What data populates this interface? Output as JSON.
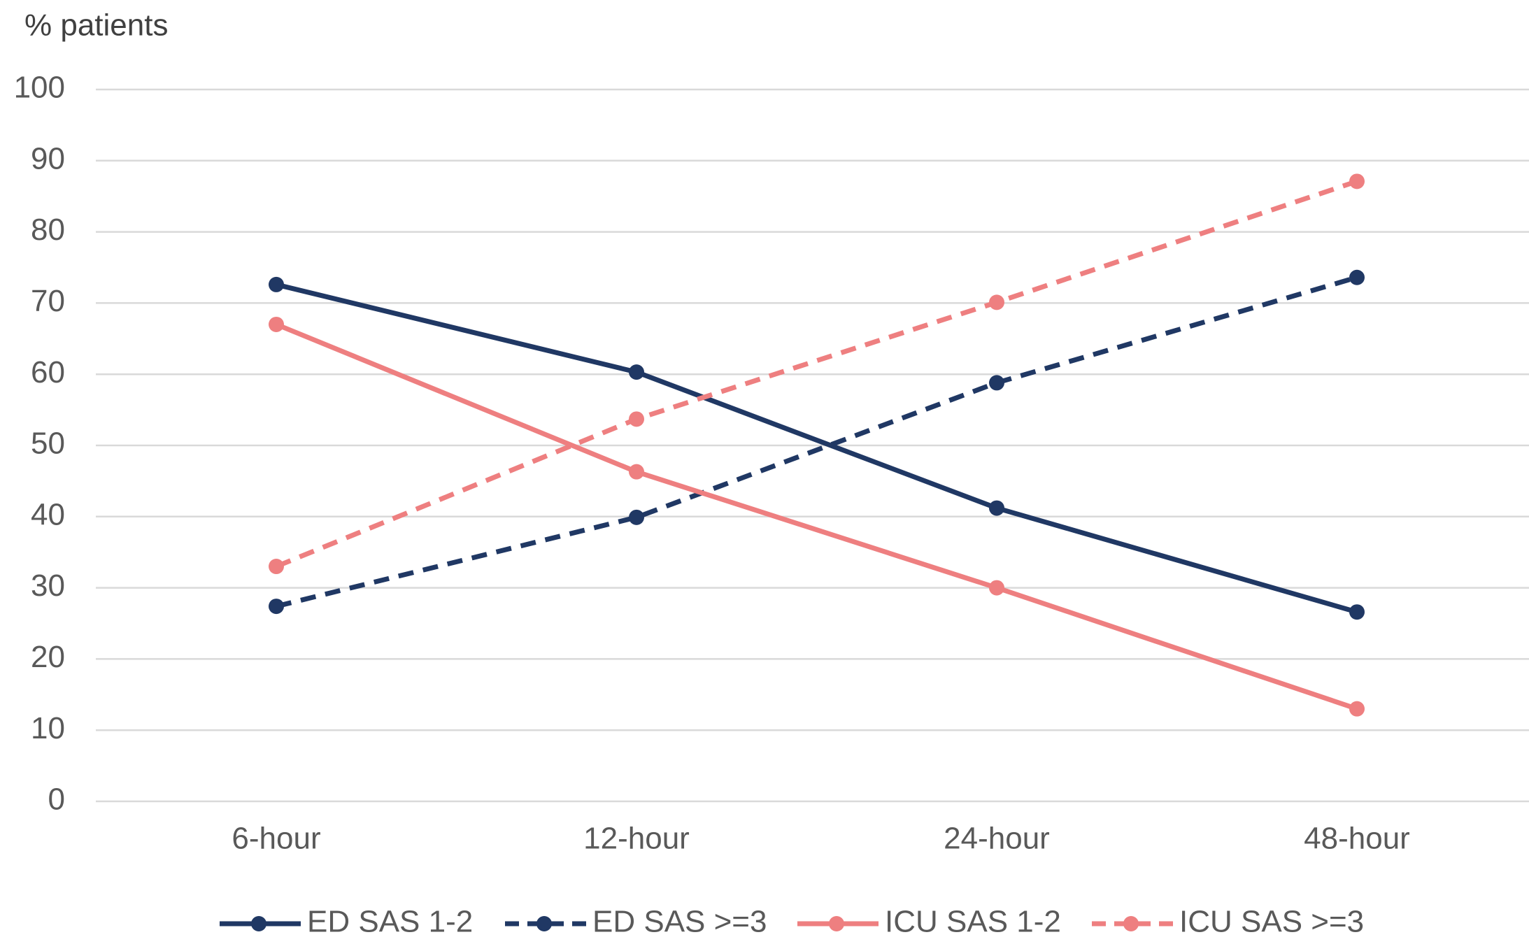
{
  "chart_data": {
    "type": "line",
    "y_label": "% patients",
    "categories": [
      "6-hour",
      "12-hour",
      "24-hour",
      "48-hour"
    ],
    "series": [
      {
        "name": "ED SAS 1-2",
        "color": "#203864",
        "line_style": "solid",
        "values": [
          72.6,
          60.3,
          41.2,
          26.6
        ]
      },
      {
        "name": "ED SAS >=3",
        "color": "#203864",
        "line_style": "dashed",
        "values": [
          27.4,
          39.9,
          58.8,
          73.6
        ]
      },
      {
        "name": "ICU SAS 1-2",
        "color": "#ee7f80",
        "line_style": "solid",
        "values": [
          67,
          46.3,
          30,
          13
        ]
      },
      {
        "name": "ICU SAS >=3",
        "color": "#ee7f80",
        "line_style": "dashed",
        "values": [
          33,
          53.7,
          70.1,
          87.1
        ]
      }
    ],
    "ylim": [
      0,
      100
    ],
    "yticks": [
      0,
      10,
      20,
      30,
      40,
      50,
      60,
      70,
      80,
      90,
      100
    ],
    "grid": true,
    "legend": "bottom"
  }
}
